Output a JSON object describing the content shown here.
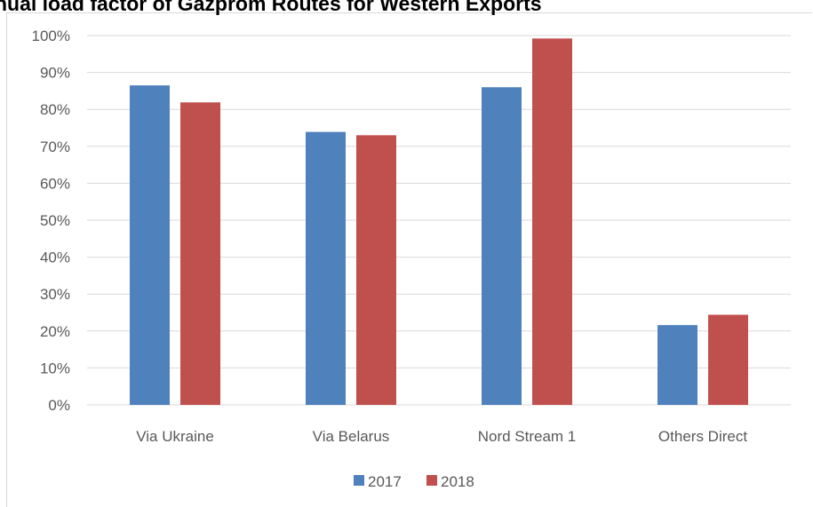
{
  "chart_data": {
    "type": "bar",
    "title": "nual load factor of Gazprom Routes for Western Exports",
    "xlabel": "",
    "ylabel": "",
    "categories": [
      "Via Ukraine",
      "Via Belarus",
      "Nord Stream 1",
      "Others Direct"
    ],
    "series": [
      {
        "name": "2017",
        "values": [
          86.5,
          73.9,
          86.0,
          21.6
        ],
        "color": "#4f81bd"
      },
      {
        "name": "2018",
        "values": [
          81.9,
          73.0,
          99.2,
          24.4
        ],
        "color": "#c0504d"
      }
    ],
    "ylim": [
      0,
      100
    ],
    "yticks": [
      "0%",
      "10%",
      "20%",
      "30%",
      "40%",
      "50%",
      "60%",
      "70%",
      "80%",
      "90%",
      "100%"
    ],
    "grid": true,
    "legend_position": "bottom"
  },
  "colors": {
    "gridline": "#d9d9d9",
    "axis_text": "#595959"
  }
}
